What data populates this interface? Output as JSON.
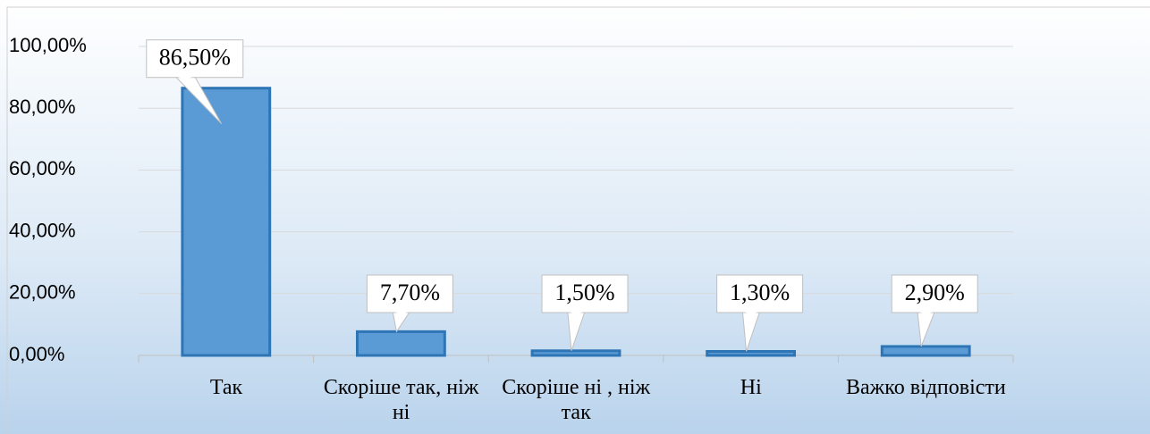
{
  "chart_data": {
    "type": "bar",
    "categories": [
      "Так",
      "Скоріше так, ніж ні",
      "Скоріше ні , ніж так",
      "Ні",
      "Важко відповісти"
    ],
    "values": [
      86.5,
      7.7,
      1.5,
      1.3,
      2.9
    ],
    "value_labels": [
      "86,50%",
      "7,70%",
      "1,50%",
      "1,30%",
      "2,90%"
    ],
    "color": "#5b9bd5",
    "ylim": [
      0,
      100
    ],
    "yticks": [
      {
        "value": 0,
        "label": "0,00%"
      },
      {
        "value": 20,
        "label": "20,00%"
      },
      {
        "value": 40,
        "label": "40,00%"
      },
      {
        "value": 60,
        "label": "60,00%"
      },
      {
        "value": 80,
        "label": "80,00%"
      },
      {
        "value": 100,
        "label": "100,00%"
      }
    ],
    "grid": true
  }
}
